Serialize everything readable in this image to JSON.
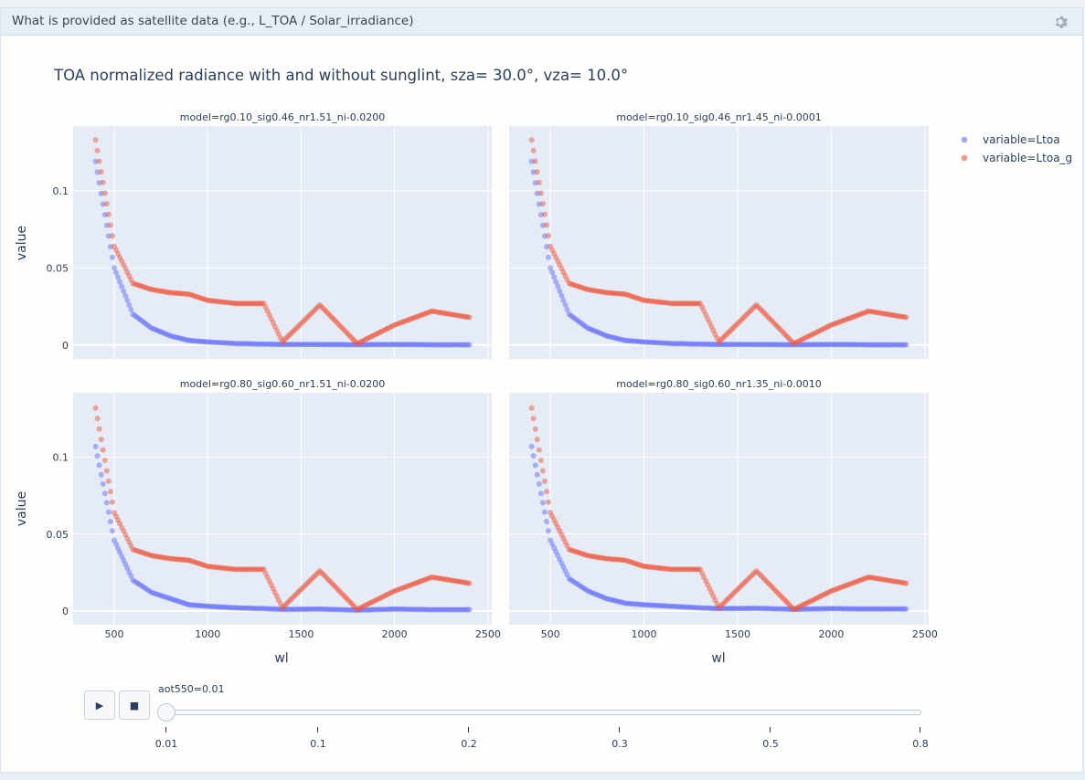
{
  "header": {
    "title": "What is provided as satellite data (e.g., L_TOA / Solar_irradiance)"
  },
  "chart_data": {
    "type": "scatter",
    "title": "TOA normalized radiance with and without sunglint, sza= 30.0°, vza= 10.0°",
    "xlabel": "wl",
    "ylabel": "value",
    "xlim": [
      280,
      2520
    ],
    "ylim": [
      -0.009,
      0.142
    ],
    "xticks": [
      500,
      1000,
      1500,
      2000,
      2500
    ],
    "xtick_labels": [
      "500",
      "1000",
      "1500",
      "2000",
      "2500"
    ],
    "yticks": [
      0,
      0.05,
      0.1
    ],
    "ytick_labels": [
      "0",
      "0.05",
      "0.1"
    ],
    "legend_position": "top-right",
    "legend": [
      "variable=Ltoa",
      "variable=Ltoa_g"
    ],
    "grid": true,
    "colors": {
      "Ltoa": "#636efa",
      "Ltoa_g": "#ef553b",
      "plot_bg": "#e5ecf6"
    },
    "wl_range": [
      400,
      2400
    ],
    "panels": [
      {
        "title": "model=rg0.10_sig0.46_nr1.51_ni-0.0200",
        "series": [
          {
            "name": "variable=Ltoa",
            "x": [
              400,
              500,
              600,
              700,
              800,
              900,
              1000,
              1150,
              1300,
              1400,
              1600,
              1800,
              2000,
              2200,
              2400
            ],
            "y": [
              0.119,
              0.05,
              0.02,
              0.011,
              0.006,
              0.003,
              0.002,
              0.001,
              0.0006,
              0.0004,
              0.0004,
              0.0002,
              0.0004,
              0.0002,
              0.0002
            ]
          },
          {
            "name": "variable=Ltoa_g",
            "x": [
              400,
              500,
              600,
              700,
              800,
              900,
              1000,
              1150,
              1300,
              1400,
              1600,
              1800,
              2000,
              2200,
              2400
            ],
            "y": [
              0.133,
              0.064,
              0.04,
              0.036,
              0.034,
              0.033,
              0.029,
              0.027,
              0.027,
              0.002,
              0.026,
              0.001,
              0.013,
              0.022,
              0.018
            ]
          }
        ]
      },
      {
        "title": "model=rg0.10_sig0.46_nr1.45_ni-0.0001",
        "series": [
          {
            "name": "variable=Ltoa",
            "x": [
              400,
              500,
              600,
              700,
              800,
              900,
              1000,
              1150,
              1300,
              1400,
              1600,
              1800,
              2000,
              2200,
              2400
            ],
            "y": [
              0.119,
              0.05,
              0.02,
              0.011,
              0.006,
              0.003,
              0.002,
              0.001,
              0.0006,
              0.0004,
              0.0004,
              0.0002,
              0.0004,
              0.0002,
              0.0002
            ]
          },
          {
            "name": "variable=Ltoa_g",
            "x": [
              400,
              500,
              600,
              700,
              800,
              900,
              1000,
              1150,
              1300,
              1400,
              1600,
              1800,
              2000,
              2200,
              2400
            ],
            "y": [
              0.133,
              0.064,
              0.04,
              0.036,
              0.034,
              0.033,
              0.029,
              0.027,
              0.027,
              0.002,
              0.026,
              0.001,
              0.013,
              0.022,
              0.018
            ]
          }
        ]
      },
      {
        "title": "model=rg0.80_sig0.60_nr1.51_ni-0.0200",
        "series": [
          {
            "name": "variable=Ltoa",
            "x": [
              400,
              500,
              600,
              700,
              800,
              900,
              1000,
              1150,
              1300,
              1400,
              1600,
              1800,
              2000,
              2200,
              2400
            ],
            "y": [
              0.107,
              0.046,
              0.02,
              0.012,
              0.008,
              0.004,
              0.003,
              0.002,
              0.0015,
              0.001,
              0.0012,
              0.0005,
              0.0012,
              0.0008,
              0.0008
            ]
          },
          {
            "name": "variable=Ltoa_g",
            "x": [
              400,
              500,
              600,
              700,
              800,
              900,
              1000,
              1150,
              1300,
              1400,
              1600,
              1800,
              2000,
              2200,
              2400
            ],
            "y": [
              0.132,
              0.064,
              0.04,
              0.036,
              0.034,
              0.033,
              0.029,
              0.027,
              0.027,
              0.002,
              0.026,
              0.001,
              0.013,
              0.022,
              0.018
            ]
          }
        ]
      },
      {
        "title": "model=rg0.80_sig0.60_nr1.35_ni-0.0010",
        "series": [
          {
            "name": "variable=Ltoa",
            "x": [
              400,
              500,
              600,
              700,
              800,
              900,
              1000,
              1150,
              1300,
              1400,
              1600,
              1800,
              2000,
              2200,
              2400
            ],
            "y": [
              0.107,
              0.046,
              0.021,
              0.013,
              0.008,
              0.005,
              0.004,
              0.003,
              0.002,
              0.0015,
              0.0017,
              0.001,
              0.0015,
              0.0012,
              0.0012
            ]
          },
          {
            "name": "variable=Ltoa_g",
            "x": [
              400,
              500,
              600,
              700,
              800,
              900,
              1000,
              1150,
              1300,
              1400,
              1600,
              1800,
              2000,
              2200,
              2400
            ],
            "y": [
              0.132,
              0.064,
              0.04,
              0.036,
              0.034,
              0.033,
              0.029,
              0.027,
              0.027,
              0.002,
              0.026,
              0.001,
              0.013,
              0.022,
              0.018
            ]
          }
        ]
      }
    ]
  },
  "animation": {
    "play_label": "▶",
    "stop_label": "■",
    "current_label": "aot550=0.01",
    "current_value": 0.01,
    "steps": [
      "0.01",
      "0.1",
      "0.2",
      "0.3",
      "0.5",
      "0.8"
    ]
  }
}
